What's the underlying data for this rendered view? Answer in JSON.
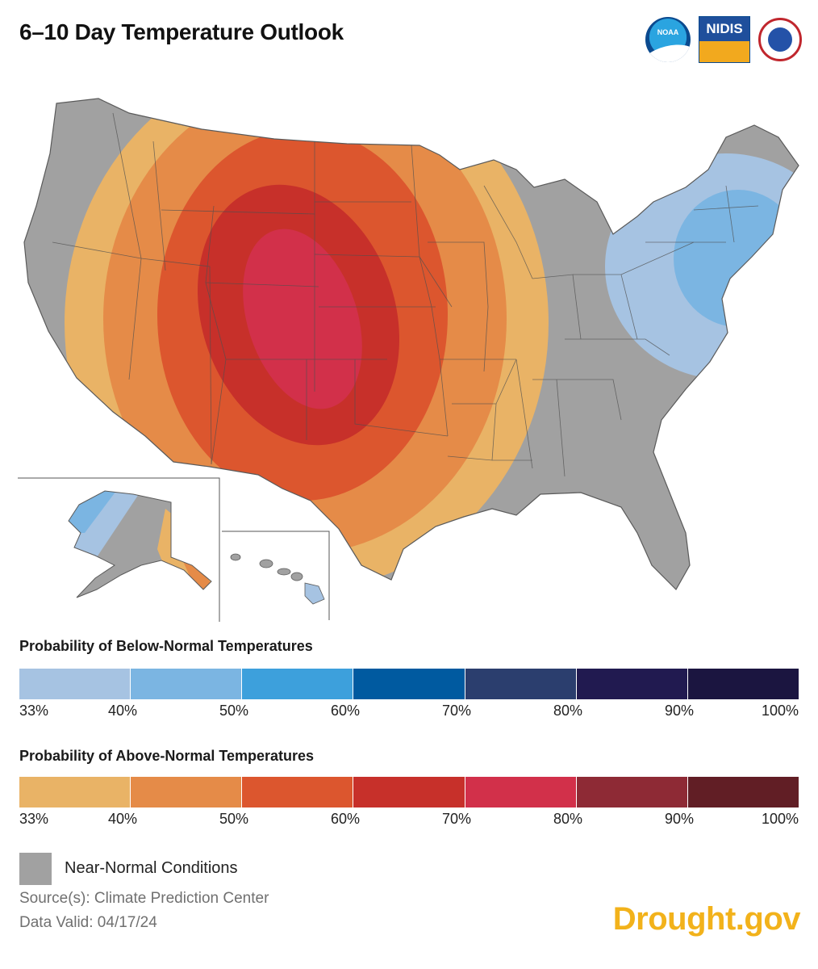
{
  "title": "6–10 Day Temperature Outlook",
  "logos": {
    "noaa": "NOAA",
    "nidis": "NIDIS",
    "nws": "NATIONAL WEATHER SERVICE"
  },
  "legend": {
    "below": {
      "title": "Probability of Below-Normal Temperatures",
      "colors": [
        "#a6c3e2",
        "#7bb5e2",
        "#3da0dc",
        "#005aa0",
        "#2b3e6e",
        "#211a50",
        "#1b1540"
      ],
      "ticks": [
        "33%",
        "40%",
        "50%",
        "60%",
        "70%",
        "80%",
        "90%",
        "100%"
      ]
    },
    "above": {
      "title": "Probability of Above-Normal Temperatures",
      "colors": [
        "#e9b366",
        "#e58b48",
        "#dc562e",
        "#c7302a",
        "#d2304a",
        "#8e2a35",
        "#611e25"
      ],
      "ticks": [
        "33%",
        "40%",
        "50%",
        "60%",
        "70%",
        "80%",
        "90%",
        "100%"
      ]
    }
  },
  "near_normal": {
    "label": "Near-Normal Conditions",
    "color": "#a1a1a1"
  },
  "source": "Source(s): Climate Prediction Center",
  "data_valid": "Data Valid: 04/17/24",
  "brand": "Drought.gov"
}
